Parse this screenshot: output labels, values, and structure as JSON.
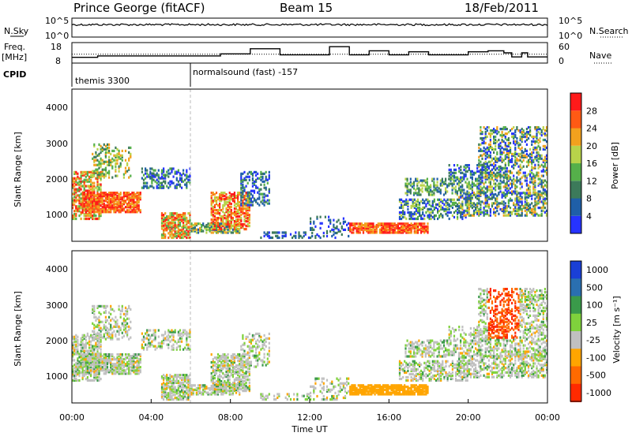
{
  "header": {
    "station": "Prince George (fitACF)",
    "beam": "Beam 15",
    "date": "18/Feb/2011"
  },
  "left_labels": {
    "nsky": "N.Sky",
    "freq": "Freq.",
    "freq_unit": "[MHz]",
    "cpid": "CPID"
  },
  "right_labels": {
    "nsearch": "N.Search",
    "nave": "Nave"
  },
  "cpid_labels": [
    "themis 3300",
    "normalsound (fast) -157"
  ],
  "chart_data": [
    {
      "type": "line",
      "name": "noise",
      "left_ticks": [
        "10^5",
        "10^0"
      ],
      "right_ticks": [
        "10^5",
        "10^0"
      ]
    },
    {
      "type": "line",
      "name": "freq-nave",
      "left_ticks": [
        "18",
        "8"
      ],
      "right_ticks": [
        "60",
        "0"
      ],
      "ylim_left": [
        8,
        18
      ],
      "ylim_right": [
        0,
        60
      ],
      "x_hours": [
        0,
        0.3,
        1.3,
        2.0,
        3.0,
        3.5,
        4.2,
        5.0,
        6.0,
        7.0,
        7.5,
        8.0,
        9.0,
        9.5,
        10.0,
        10.5,
        11.0,
        12.0,
        13.0,
        14.0,
        15.0,
        15.5,
        16.0,
        17.0,
        17.5,
        18.0,
        19.0,
        19.5,
        20.0,
        21.0,
        21.8,
        22.2,
        22.7,
        23.0,
        24.0
      ],
      "freq": [
        10.8,
        10.8,
        11.5,
        11.5,
        11.5,
        11.5,
        11.5,
        11.5,
        11.5,
        11.5,
        12.5,
        12.5,
        15.0,
        15.0,
        15.0,
        12.0,
        12.0,
        12.0,
        16.0,
        12.0,
        14.0,
        14.0,
        12.0,
        13.5,
        13.5,
        12.0,
        12.0,
        12.0,
        13.5,
        14.0,
        13.0,
        11.0,
        13.0,
        11.0,
        13.0
      ],
      "nave_level": 26
    },
    {
      "type": "heatmap",
      "name": "power",
      "xlabel": "",
      "ylabel": "Slant Range [km]",
      "y_ticks": [
        "1000",
        "2000",
        "3000",
        "4000"
      ],
      "ylim": [
        180,
        4600
      ],
      "xlim_hours": [
        0,
        24
      ],
      "colorbar_label": "Power [dB]",
      "colorbar_ticks": [
        "4",
        "8",
        "12",
        "16",
        "20",
        "24",
        "28"
      ],
      "colors": [
        "#2633ff",
        "#1f5fa8",
        "#3c7a5a",
        "#55b04a",
        "#b8d34a",
        "#f2a11e",
        "#ff5a14",
        "#ff1a1a"
      ]
    },
    {
      "type": "heatmap",
      "name": "velocity",
      "xlabel": "Time UT",
      "ylabel": "Slant Range [km]",
      "y_ticks": [
        "1000",
        "2000",
        "3000",
        "4000"
      ],
      "ylim": [
        180,
        4600
      ],
      "xlim_hours": [
        0,
        24
      ],
      "colorbar_label": "Velocity [m s⁻¹]",
      "colorbar_ticks": [
        "1000",
        "500",
        "100",
        "25",
        "-25",
        "-100",
        "-500",
        "-1000"
      ],
      "colors": [
        "#1a3fd6",
        "#2a6fb0",
        "#3a9a4a",
        "#7fd23c",
        "#c0c0c0",
        "#ffa500",
        "#ff6a00",
        "#ff2a00"
      ],
      "x_tick_labels": [
        "00:00",
        "04:00",
        "08:00",
        "12:00",
        "16:00",
        "20:00",
        "00:00"
      ]
    }
  ]
}
